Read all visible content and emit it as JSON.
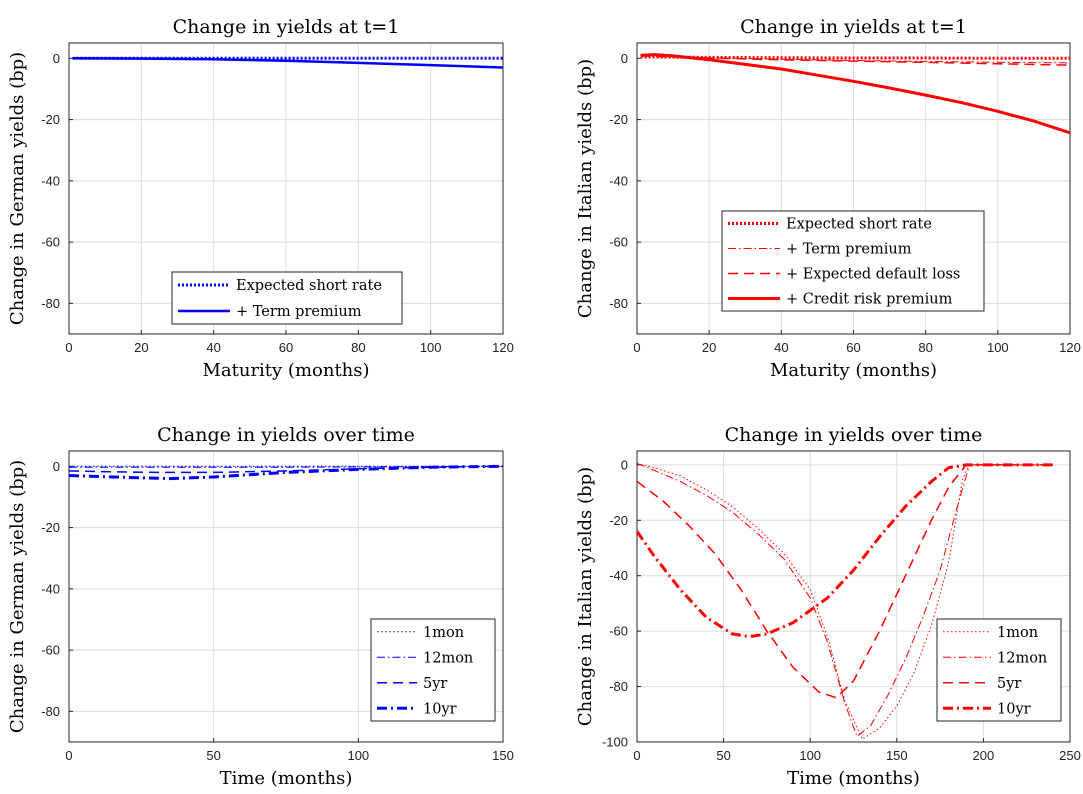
{
  "chart_data": [
    {
      "type": "line",
      "title": "Change in yields at t=1",
      "xlabel": "Maturity (months)",
      "ylabel": "Change in German yields (bp)",
      "xlim": [
        0,
        120
      ],
      "ylim": [
        -90,
        5
      ],
      "xticks": [
        0,
        20,
        40,
        60,
        80,
        100,
        120
      ],
      "yticks": [
        0,
        -20,
        -40,
        -60,
        -80
      ],
      "grid": true,
      "legend_position": "bottom-center",
      "series": [
        {
          "name": "Expected short rate",
          "color": "#0000ff",
          "style": "dotted",
          "width": 3,
          "x": [
            1,
            20,
            40,
            60,
            80,
            100,
            120
          ],
          "y": [
            0,
            0,
            0,
            0,
            0,
            0,
            0
          ]
        },
        {
          "name": "+ Term premium",
          "color": "#0000ff",
          "style": "solid",
          "width": 2.5,
          "x": [
            1,
            20,
            40,
            60,
            80,
            100,
            120
          ],
          "y": [
            0,
            -0.1,
            -0.3,
            -0.8,
            -1.5,
            -2.2,
            -3.0
          ]
        }
      ]
    },
    {
      "type": "line",
      "title": "Change in yields at t=1",
      "xlabel": "Maturity (months)",
      "ylabel": "Change in Italian yields (bp)",
      "xlim": [
        0,
        120
      ],
      "ylim": [
        -90,
        5
      ],
      "xticks": [
        0,
        20,
        40,
        60,
        80,
        100,
        120
      ],
      "yticks": [
        0,
        -20,
        -40,
        -60,
        -80
      ],
      "grid": true,
      "legend_position": "center-right",
      "series": [
        {
          "name": "Expected short rate",
          "color": "#ff0000",
          "style": "dotted",
          "width": 3,
          "x": [
            1,
            20,
            40,
            60,
            80,
            100,
            120
          ],
          "y": [
            0.5,
            0.3,
            0.2,
            0.1,
            0.1,
            0,
            0
          ]
        },
        {
          "name": "+ Term premium",
          "color": "#ff0000",
          "style": "dashdot",
          "width": 1,
          "x": [
            1,
            20,
            40,
            60,
            80,
            100,
            120
          ],
          "y": [
            0.8,
            0.2,
            -0.3,
            -0.7,
            -1.0,
            -1.3,
            -1.5
          ]
        },
        {
          "name": "+ Expected default loss",
          "color": "#ff0000",
          "style": "dashed",
          "width": 1.5,
          "x": [
            1,
            20,
            40,
            60,
            80,
            100,
            120
          ],
          "y": [
            0.8,
            0.1,
            -0.5,
            -0.9,
            -1.3,
            -1.8,
            -2.2
          ]
        },
        {
          "name": "+ Credit risk premium",
          "color": "#ff0000",
          "style": "solid",
          "width": 3,
          "x": [
            1,
            5,
            10,
            20,
            30,
            40,
            50,
            60,
            70,
            80,
            90,
            100,
            110,
            120
          ],
          "y": [
            1.0,
            1.2,
            0.8,
            -0.5,
            -2.0,
            -3.5,
            -5.5,
            -7.5,
            -9.7,
            -12.0,
            -14.5,
            -17.3,
            -20.5,
            -24.3
          ]
        }
      ]
    },
    {
      "type": "line",
      "title": "Change in yields over time",
      "xlabel": "Time (months)",
      "ylabel": "Change in German yields (bp)",
      "xlim": [
        0,
        150
      ],
      "ylim": [
        -90,
        5
      ],
      "xticks": [
        0,
        50,
        100,
        150
      ],
      "yticks": [
        0,
        -20,
        -40,
        -60,
        -80
      ],
      "grid": true,
      "legend_position": "bottom-right",
      "series": [
        {
          "name": "1mon",
          "color": "#0000ff",
          "style": "dotted",
          "width": 1,
          "x": [
            0,
            25,
            50,
            75,
            100,
            125,
            150
          ],
          "y": [
            0,
            0,
            0,
            0,
            0,
            0,
            0
          ]
        },
        {
          "name": "12mon",
          "color": "#0000ff",
          "style": "dashdot",
          "width": 1,
          "x": [
            0,
            25,
            50,
            75,
            100,
            125,
            150
          ],
          "y": [
            -0.3,
            -0.3,
            -0.3,
            -0.3,
            -0.2,
            -0.1,
            0
          ]
        },
        {
          "name": "5yr",
          "color": "#0000ff",
          "style": "dashed",
          "width": 1.5,
          "x": [
            0,
            15,
            30,
            50,
            75,
            100,
            125,
            150
          ],
          "y": [
            -1.5,
            -1.8,
            -2.0,
            -2.0,
            -1.5,
            -0.8,
            -0.3,
            0
          ]
        },
        {
          "name": "10yr",
          "color": "#0000ff",
          "style": "dashdot",
          "width": 3,
          "x": [
            0,
            15,
            35,
            50,
            75,
            100,
            125,
            150
          ],
          "y": [
            -3.0,
            -3.5,
            -4.0,
            -3.5,
            -2.0,
            -1.0,
            -0.3,
            0
          ]
        }
      ]
    },
    {
      "type": "line",
      "title": "Change in yields over time",
      "xlabel": "Time (months)",
      "ylabel": "Change in Italian yields (bp)",
      "xlim": [
        0,
        250
      ],
      "ylim": [
        -100,
        5
      ],
      "xticks": [
        0,
        50,
        100,
        150,
        200,
        250
      ],
      "yticks": [
        0,
        -20,
        -40,
        -60,
        -80,
        -100
      ],
      "grid": true,
      "legend_position": "bottom-right",
      "series": [
        {
          "name": "1mon",
          "color": "#ff0000",
          "style": "dotted",
          "width": 1,
          "x": [
            0,
            10,
            25,
            40,
            55,
            70,
            85,
            100,
            110,
            120,
            130,
            140,
            150,
            160,
            170,
            180,
            188,
            192,
            200,
            220,
            240
          ],
          "y": [
            0.5,
            -1,
            -4,
            -9,
            -15,
            -23,
            -32,
            -45,
            -62,
            -85,
            -99,
            -95,
            -87,
            -75,
            -58,
            -35,
            -5,
            0,
            0,
            0,
            0
          ]
        },
        {
          "name": "12mon",
          "color": "#ff0000",
          "style": "dashdot",
          "width": 1,
          "x": [
            0,
            10,
            25,
            40,
            55,
            70,
            85,
            100,
            110,
            120,
            127,
            135,
            145,
            155,
            165,
            175,
            185,
            192,
            200,
            220,
            240
          ],
          "y": [
            0.5,
            -2,
            -6,
            -11,
            -17,
            -25,
            -34,
            -48,
            -64,
            -86,
            -98,
            -94,
            -83,
            -70,
            -55,
            -38,
            -15,
            0,
            0,
            0,
            0
          ]
        },
        {
          "name": "5yr",
          "color": "#ff0000",
          "style": "dashed",
          "width": 1.5,
          "x": [
            0,
            15,
            30,
            45,
            60,
            75,
            90,
            105,
            115,
            125,
            140,
            155,
            170,
            180,
            190,
            200,
            220,
            240
          ],
          "y": [
            -6,
            -13,
            -22,
            -32,
            -45,
            -60,
            -73,
            -82,
            -84,
            -78,
            -60,
            -40,
            -20,
            -8,
            0,
            0,
            0,
            0
          ]
        },
        {
          "name": "10yr",
          "color": "#ff0000",
          "style": "dashdot",
          "width": 3,
          "x": [
            0,
            10,
            25,
            40,
            55,
            65,
            75,
            90,
            110,
            125,
            140,
            155,
            170,
            180,
            190,
            200,
            220,
            240
          ],
          "y": [
            -24,
            -33,
            -45,
            -55,
            -61,
            -62,
            -61,
            -57,
            -48,
            -38,
            -26,
            -15,
            -6,
            -1,
            0,
            0,
            0,
            0
          ]
        }
      ]
    }
  ]
}
